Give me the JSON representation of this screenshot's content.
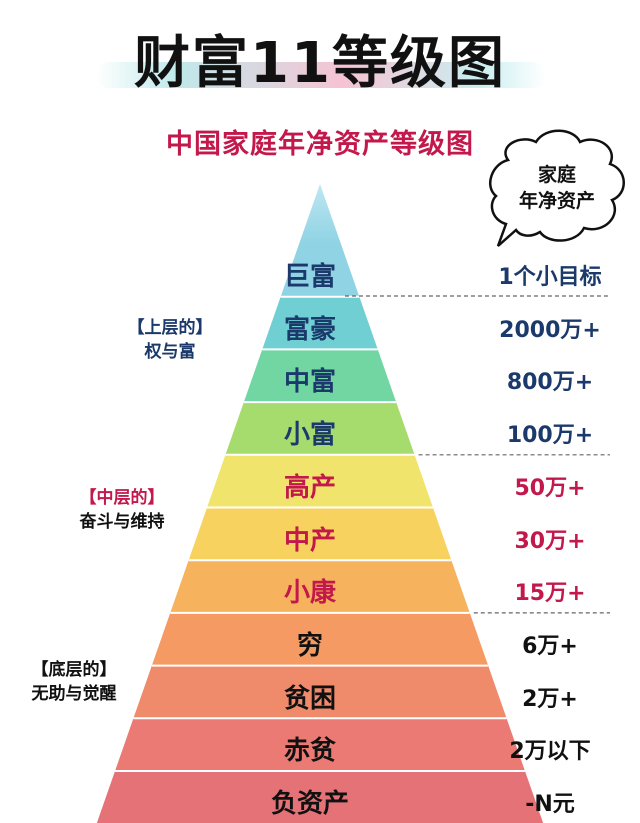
{
  "title": "财富11等级图",
  "subtitle": "中国家庭年净资产等级图",
  "bubble": {
    "line1": "家庭",
    "line2": "年净资产"
  },
  "groups": [
    {
      "line1": "【上层的】",
      "line2": "权与富",
      "color": "#1b3a6b"
    },
    {
      "line1": "【中层的】",
      "line2": "奋斗与维持",
      "color": "#c2184b"
    },
    {
      "line1": "【底层的】",
      "line2": "无助与觉醒",
      "color": "#111111"
    }
  ],
  "levels": [
    {
      "name": "巨富",
      "value": "1个小目标",
      "tier": "upper"
    },
    {
      "name": "富豪",
      "value": "2000万+",
      "tier": "upper"
    },
    {
      "name": "中富",
      "value": "800万+",
      "tier": "upper"
    },
    {
      "name": "小富",
      "value": "100万+",
      "tier": "upper"
    },
    {
      "name": "高产",
      "value": "50万+",
      "tier": "middle"
    },
    {
      "name": "中产",
      "value": "30万+",
      "tier": "middle"
    },
    {
      "name": "小康",
      "value": "15万+",
      "tier": "middle"
    },
    {
      "name": "穷",
      "value": "6万+",
      "tier": "lower"
    },
    {
      "name": "贫困",
      "value": "2万+",
      "tier": "lower"
    },
    {
      "name": "赤贫",
      "value": "2万以下",
      "tier": "lower"
    },
    {
      "name": "负资产",
      "value": "-N元",
      "tier": "lower"
    }
  ],
  "tier_colors": {
    "upper": "#1b3a6b",
    "middle": "#c2184b",
    "lower": "#111111"
  },
  "band_colors": [
    "#8fd3e4",
    "#6fcfd2",
    "#72d6a3",
    "#a6dc6e",
    "#f1e46c",
    "#f8d25f",
    "#f6b25c",
    "#f49a62",
    "#ef8a6b",
    "#ea7a73",
    "#e57277"
  ]
}
